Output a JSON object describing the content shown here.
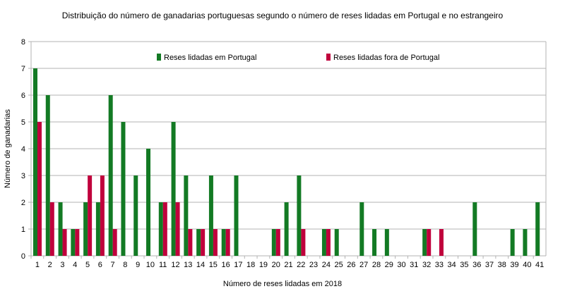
{
  "chart_data": {
    "type": "bar",
    "title": "Distribuição do número de ganadarias portuguesas segundo o número de reses lidadas em Portugal e no estrangeiro",
    "xlabel": "Número de reses lidadas em 2018",
    "ylabel": "Número de ganadarias",
    "ylim": [
      0,
      8
    ],
    "yticks": [
      "0",
      "1",
      "2",
      "3",
      "4",
      "5",
      "6",
      "7",
      "8"
    ],
    "grid": true,
    "legend_placement": "top",
    "categories": [
      "1",
      "2",
      "3",
      "4",
      "5",
      "6",
      "7",
      "8",
      "9",
      "10",
      "11",
      "12",
      "13",
      "14",
      "15",
      "16",
      "17",
      "18",
      "19",
      "20",
      "21",
      "22",
      "23",
      "24",
      "25",
      "26",
      "27",
      "28",
      "29",
      "30",
      "31",
      "32",
      "33",
      "34",
      "35",
      "36",
      "37",
      "38",
      "39",
      "40",
      "41"
    ],
    "series": [
      {
        "name": "Reses lidadas em Portugal",
        "color": "#137a24",
        "values": [
          7,
          6,
          2,
          1,
          2,
          2,
          6,
          5,
          3,
          4,
          2,
          5,
          3,
          1,
          3,
          1,
          3,
          0,
          0,
          1,
          2,
          3,
          0,
          1,
          1,
          0,
          2,
          1,
          1,
          0,
          0,
          1,
          0,
          0,
          0,
          2,
          0,
          0,
          1,
          1,
          2
        ]
      },
      {
        "name": "Reses lidadas fora de Portugal",
        "color": "#c0003c",
        "values": [
          5,
          2,
          1,
          1,
          3,
          3,
          1,
          0,
          0,
          0,
          2,
          2,
          1,
          1,
          1,
          1,
          0,
          0,
          0,
          1,
          0,
          1,
          0,
          1,
          0,
          0,
          0,
          0,
          0,
          0,
          0,
          1,
          1,
          0,
          0,
          0,
          0,
          0,
          0,
          0,
          0
        ]
      }
    ]
  }
}
